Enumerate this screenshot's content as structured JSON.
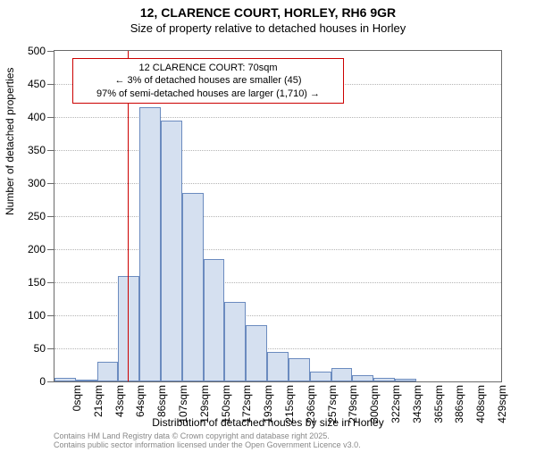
{
  "title": "12, CLARENCE COURT, HORLEY, RH6 9GR",
  "subtitle": "Size of property relative to detached houses in Horley",
  "ylabel": "Number of detached properties",
  "xlabel": "Distribution of detached houses by size in Horley",
  "footer_line1": "Contains HM Land Registry data © Crown copyright and database right 2025.",
  "footer_line2": "Contains public sector information licensed under the Open Government Licence v3.0.",
  "annotation": {
    "line1": "12 CLARENCE COURT: 70sqm",
    "line2": "← 3% of detached houses are smaller (45)",
    "line3": "97% of semi-detached houses are larger (1,710) →"
  },
  "chart": {
    "type": "histogram",
    "background_color": "#ffffff",
    "grid_color": "#b5b5b5",
    "axis_color": "#6a6a6a",
    "bar_fill": "#d5e0f0",
    "bar_stroke": "#6b8bbf",
    "refline_color": "#cc0000",
    "refline_x": 70,
    "xlim": [
      0,
      429
    ],
    "ylim": [
      0,
      500
    ],
    "ytick_step": 50,
    "xtick_step": 21.45,
    "xtick_unit": "sqm",
    "label_fontsize": 12,
    "title_fontsize": 14,
    "bar_width_ratio": 1.0,
    "x_categories": [
      0,
      21,
      43,
      64,
      86,
      107,
      129,
      150,
      172,
      193,
      215,
      236,
      257,
      279,
      300,
      322,
      343,
      365,
      386,
      408,
      429
    ],
    "values": [
      5,
      3,
      30,
      160,
      415,
      395,
      285,
      185,
      120,
      85,
      45,
      35,
      15,
      20,
      10,
      5,
      4,
      0,
      0,
      0,
      0
    ]
  }
}
